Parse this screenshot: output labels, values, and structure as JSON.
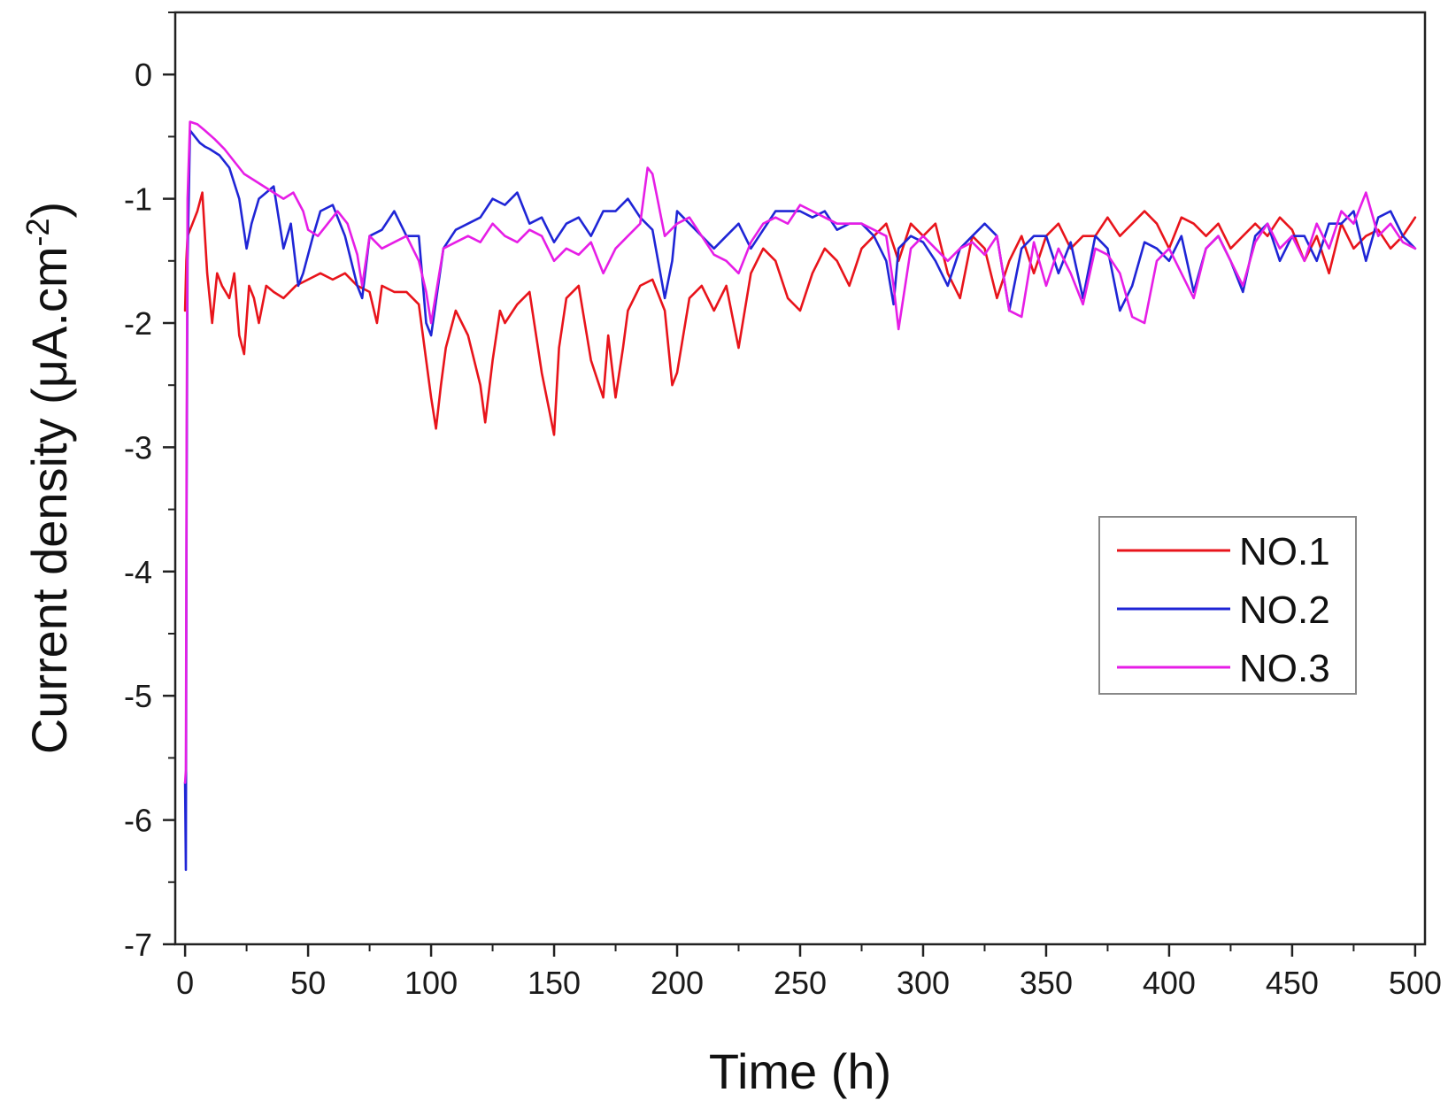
{
  "chart_data": {
    "type": "line",
    "title": "",
    "xlabel": "Time (h)",
    "ylabel_main": "Current density (μA.cm",
    "ylabel_sup": "-2",
    "ylabel_close": ")",
    "xlim": [
      -4,
      504
    ],
    "ylim": [
      -7,
      0.5
    ],
    "x_ticks": [
      0,
      50,
      100,
      150,
      200,
      250,
      300,
      350,
      400,
      450,
      500
    ],
    "x_tick_labels": [
      "0",
      "50",
      "100",
      "150",
      "200",
      "250",
      "300",
      "350",
      "400",
      "450",
      "500"
    ],
    "y_ticks": [
      0,
      -1,
      -2,
      -3,
      -4,
      -5,
      -6,
      -7
    ],
    "y_tick_labels": [
      "0",
      "-1",
      "-2",
      "-3",
      "-4",
      "-5",
      "-6",
      "-7"
    ],
    "grid": false,
    "legend_position": "right-middle",
    "series": [
      {
        "name": "NO.1",
        "color": "#e8141b",
        "x": [
          0,
          0.5,
          1,
          3,
          5,
          7,
          9,
          11,
          13,
          15,
          18,
          20,
          22,
          24,
          26,
          28,
          30,
          33,
          36,
          40,
          45,
          50,
          55,
          60,
          65,
          70,
          75,
          78,
          80,
          85,
          90,
          95,
          98,
          100,
          102,
          104,
          106,
          110,
          115,
          120,
          122,
          125,
          128,
          130,
          135,
          140,
          145,
          148,
          150,
          152,
          155,
          160,
          165,
          170,
          172,
          175,
          178,
          180,
          185,
          190,
          195,
          198,
          200,
          205,
          210,
          215,
          220,
          225,
          230,
          235,
          240,
          245,
          250,
          255,
          260,
          265,
          270,
          275,
          280,
          285,
          290,
          295,
          300,
          305,
          310,
          315,
          320,
          325,
          330,
          335,
          340,
          345,
          350,
          355,
          360,
          365,
          370,
          375,
          380,
          385,
          390,
          395,
          400,
          405,
          410,
          415,
          420,
          425,
          430,
          435,
          440,
          445,
          450,
          455,
          460,
          465,
          470,
          475,
          480,
          485,
          490,
          495,
          500
        ],
        "values": [
          -1.9,
          -1.5,
          -1.3,
          -1.2,
          -1.1,
          -0.95,
          -1.6,
          -2.0,
          -1.6,
          -1.7,
          -1.8,
          -1.6,
          -2.1,
          -2.25,
          -1.7,
          -1.8,
          -2.0,
          -1.7,
          -1.75,
          -1.8,
          -1.7,
          -1.65,
          -1.6,
          -1.65,
          -1.6,
          -1.7,
          -1.75,
          -2.0,
          -1.7,
          -1.75,
          -1.75,
          -1.85,
          -2.3,
          -2.6,
          -2.85,
          -2.5,
          -2.2,
          -1.9,
          -2.1,
          -2.5,
          -2.8,
          -2.3,
          -1.9,
          -2.0,
          -1.85,
          -1.75,
          -2.4,
          -2.7,
          -2.9,
          -2.2,
          -1.8,
          -1.7,
          -2.3,
          -2.6,
          -2.1,
          -2.6,
          -2.2,
          -1.9,
          -1.7,
          -1.65,
          -1.9,
          -2.5,
          -2.4,
          -1.8,
          -1.7,
          -1.9,
          -1.7,
          -2.2,
          -1.6,
          -1.4,
          -1.5,
          -1.8,
          -1.9,
          -1.6,
          -1.4,
          -1.5,
          -1.7,
          -1.4,
          -1.3,
          -1.2,
          -1.5,
          -1.2,
          -1.3,
          -1.2,
          -1.6,
          -1.8,
          -1.3,
          -1.4,
          -1.8,
          -1.5,
          -1.3,
          -1.6,
          -1.3,
          -1.2,
          -1.4,
          -1.3,
          -1.3,
          -1.15,
          -1.3,
          -1.2,
          -1.1,
          -1.2,
          -1.4,
          -1.15,
          -1.2,
          -1.3,
          -1.2,
          -1.4,
          -1.3,
          -1.2,
          -1.3,
          -1.15,
          -1.25,
          -1.5,
          -1.3,
          -1.6,
          -1.2,
          -1.4,
          -1.3,
          -1.25,
          -1.4,
          -1.3,
          -1.15
        ]
      },
      {
        "name": "NO.2",
        "color": "#1f25d6",
        "x": [
          0,
          0.3,
          0.6,
          1,
          2,
          4,
          6,
          8,
          10,
          14,
          18,
          22,
          25,
          27,
          30,
          33,
          36,
          40,
          43,
          46,
          48,
          52,
          55,
          60,
          65,
          70,
          72,
          75,
          80,
          85,
          90,
          95,
          98,
          100,
          105,
          110,
          115,
          120,
          125,
          130,
          135,
          140,
          145,
          150,
          155,
          160,
          165,
          170,
          175,
          180,
          185,
          190,
          195,
          198,
          200,
          205,
          210,
          215,
          220,
          225,
          230,
          235,
          240,
          245,
          250,
          255,
          260,
          265,
          270,
          275,
          280,
          285,
          288,
          290,
          295,
          300,
          305,
          310,
          315,
          320,
          325,
          330,
          335,
          340,
          345,
          350,
          355,
          360,
          365,
          370,
          375,
          380,
          385,
          390,
          395,
          400,
          405,
          410,
          415,
          420,
          425,
          430,
          435,
          440,
          445,
          450,
          455,
          460,
          465,
          470,
          475,
          480,
          485,
          490,
          495,
          500
        ],
        "values": [
          -5.7,
          -6.4,
          -3.5,
          -1.5,
          -0.45,
          -0.5,
          -0.55,
          -0.58,
          -0.6,
          -0.65,
          -0.75,
          -1.0,
          -1.4,
          -1.2,
          -1.0,
          -0.95,
          -0.9,
          -1.4,
          -1.2,
          -1.7,
          -1.6,
          -1.3,
          -1.1,
          -1.05,
          -1.3,
          -1.7,
          -1.8,
          -1.3,
          -1.25,
          -1.1,
          -1.3,
          -1.3,
          -2.0,
          -2.1,
          -1.4,
          -1.25,
          -1.2,
          -1.15,
          -1.0,
          -1.05,
          -0.95,
          -1.2,
          -1.15,
          -1.35,
          -1.2,
          -1.15,
          -1.3,
          -1.1,
          -1.1,
          -1.0,
          -1.15,
          -1.25,
          -1.8,
          -1.5,
          -1.1,
          -1.2,
          -1.3,
          -1.4,
          -1.3,
          -1.2,
          -1.4,
          -1.25,
          -1.1,
          -1.1,
          -1.1,
          -1.15,
          -1.1,
          -1.25,
          -1.2,
          -1.2,
          -1.3,
          -1.5,
          -1.85,
          -1.4,
          -1.3,
          -1.35,
          -1.5,
          -1.7,
          -1.4,
          -1.3,
          -1.2,
          -1.3,
          -1.9,
          -1.4,
          -1.3,
          -1.3,
          -1.6,
          -1.35,
          -1.8,
          -1.3,
          -1.4,
          -1.9,
          -1.7,
          -1.35,
          -1.4,
          -1.5,
          -1.3,
          -1.75,
          -1.4,
          -1.3,
          -1.5,
          -1.75,
          -1.3,
          -1.2,
          -1.5,
          -1.3,
          -1.3,
          -1.5,
          -1.2,
          -1.2,
          -1.1,
          -1.5,
          -1.15,
          -1.1,
          -1.3,
          -1.4
        ]
      },
      {
        "name": "NO.3",
        "color": "#e61ee6",
        "x": [
          0,
          0.3,
          0.6,
          1,
          2,
          5,
          8,
          12,
          16,
          20,
          24,
          28,
          32,
          36,
          40,
          44,
          48,
          50,
          54,
          58,
          62,
          66,
          70,
          72,
          75,
          80,
          85,
          90,
          95,
          98,
          100,
          105,
          110,
          115,
          120,
          125,
          130,
          135,
          140,
          145,
          150,
          155,
          160,
          165,
          170,
          175,
          180,
          185,
          188,
          190,
          192,
          195,
          200,
          205,
          210,
          215,
          220,
          225,
          230,
          235,
          240,
          245,
          250,
          255,
          260,
          265,
          270,
          275,
          280,
          285,
          288,
          290,
          295,
          300,
          305,
          310,
          315,
          320,
          325,
          330,
          335,
          340,
          345,
          350,
          355,
          360,
          365,
          370,
          375,
          380,
          385,
          390,
          395,
          400,
          405,
          410,
          415,
          420,
          425,
          430,
          435,
          440,
          445,
          450,
          455,
          460,
          465,
          470,
          475,
          480,
          485,
          490,
          495,
          500
        ],
        "values": [
          -5.7,
          -5.6,
          -3.0,
          -1.0,
          -0.38,
          -0.4,
          -0.45,
          -0.52,
          -0.6,
          -0.7,
          -0.8,
          -0.85,
          -0.9,
          -0.95,
          -1.0,
          -0.95,
          -1.1,
          -1.25,
          -1.3,
          -1.2,
          -1.1,
          -1.2,
          -1.45,
          -1.7,
          -1.3,
          -1.4,
          -1.35,
          -1.3,
          -1.5,
          -1.75,
          -2.0,
          -1.4,
          -1.35,
          -1.3,
          -1.35,
          -1.2,
          -1.3,
          -1.35,
          -1.25,
          -1.3,
          -1.5,
          -1.4,
          -1.45,
          -1.35,
          -1.6,
          -1.4,
          -1.3,
          -1.2,
          -0.75,
          -0.8,
          -1.0,
          -1.3,
          -1.2,
          -1.15,
          -1.3,
          -1.45,
          -1.5,
          -1.6,
          -1.35,
          -1.2,
          -1.15,
          -1.2,
          -1.05,
          -1.1,
          -1.15,
          -1.2,
          -1.2,
          -1.2,
          -1.25,
          -1.3,
          -1.7,
          -2.05,
          -1.4,
          -1.3,
          -1.4,
          -1.5,
          -1.4,
          -1.35,
          -1.45,
          -1.3,
          -1.9,
          -1.95,
          -1.35,
          -1.7,
          -1.4,
          -1.6,
          -1.85,
          -1.4,
          -1.45,
          -1.6,
          -1.95,
          -2.0,
          -1.5,
          -1.4,
          -1.6,
          -1.8,
          -1.4,
          -1.3,
          -1.5,
          -1.7,
          -1.35,
          -1.2,
          -1.4,
          -1.3,
          -1.5,
          -1.2,
          -1.4,
          -1.1,
          -1.2,
          -0.95,
          -1.3,
          -1.2,
          -1.35,
          -1.4
        ]
      }
    ]
  }
}
